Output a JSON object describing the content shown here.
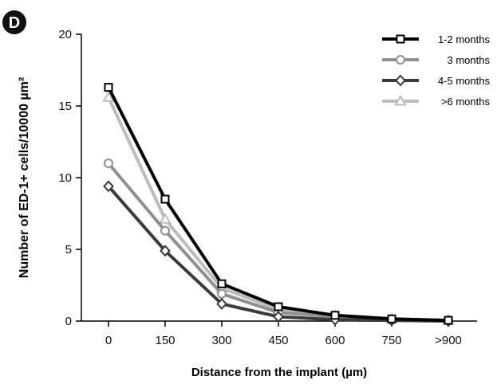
{
  "panel_letter": "D",
  "chart_data": {
    "type": "line",
    "title": "",
    "xlabel": "Distance from the implant (µm)",
    "ylabel": "Number of ED-1+ cells/10000 µm²",
    "categories": [
      "0",
      "150",
      "300",
      "450",
      "600",
      "750",
      ">900"
    ],
    "ylim": [
      0,
      20
    ],
    "yticks": [
      0,
      5,
      10,
      15,
      20
    ],
    "grid": false,
    "legend_position": "top-right",
    "series": [
      {
        "name": "1-2 months",
        "marker": "square",
        "color": "#000000",
        "values": [
          16.3,
          8.5,
          2.6,
          1.0,
          0.4,
          0.15,
          0.05
        ]
      },
      {
        "name": "3 months",
        "marker": "circle",
        "color": "#8f8f8f",
        "values": [
          11.0,
          6.3,
          1.9,
          0.6,
          0.3,
          0.1,
          0.05
        ]
      },
      {
        "name": "4-5 months",
        "marker": "diamond",
        "color": "#3a3a3a",
        "values": [
          9.4,
          4.9,
          1.2,
          0.3,
          0.1,
          0.05,
          0.0
        ]
      },
      {
        "name": ">6 months",
        "marker": "triangle",
        "color": "#bcbcbc",
        "values": [
          15.6,
          7.1,
          2.3,
          0.8,
          0.4,
          0.15,
          0.05
        ]
      }
    ]
  }
}
